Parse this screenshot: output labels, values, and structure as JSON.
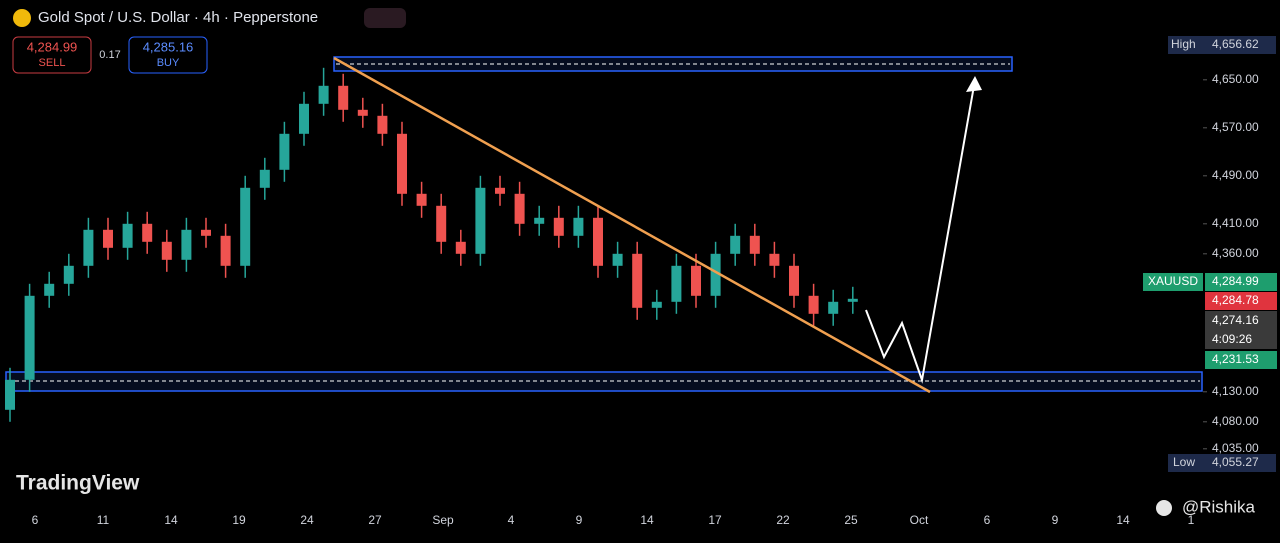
{
  "header": {
    "title": "Gold Spot / U.S. Dollar · 4h · Pepperstone",
    "sell_price": "4,284.99",
    "sell_label": "SELL",
    "spread": "0.17",
    "buy_price": "4,285.16",
    "buy_label": "BUY"
  },
  "price_labels": {
    "high_label": "High",
    "high_value": "4,656.62",
    "symbol": "XAUUSD",
    "last": "4,284.99",
    "bid": "4,284.78",
    "prev": "4,274.16",
    "countdown": "4:09:26",
    "level": "4,231.53",
    "low_label": "Low",
    "low_value": "4,055.27"
  },
  "watermark": "TradingView",
  "credit": "@Rishika",
  "chart_data": {
    "type": "candlestick",
    "categories": [
      "6",
      "11",
      "14",
      "19",
      "24",
      "27",
      "Sep",
      "4",
      "9",
      "14",
      "17",
      "22",
      "25",
      "Oct",
      "6",
      "9",
      "14",
      "1"
    ],
    "up_color": "#26a69a",
    "down_color": "#ef5350",
    "ylim": [
      3933,
      4783
    ],
    "yticks": [
      {
        "value": 4035,
        "label": "4,035.00"
      },
      {
        "value": 4080,
        "label": "4,080.00"
      },
      {
        "value": 4130,
        "label": "4,130.00"
      },
      {
        "value": 4360,
        "label": "4,360.00"
      },
      {
        "value": 4410,
        "label": "4,410.00"
      },
      {
        "value": 4490,
        "label": "4,490.00"
      },
      {
        "value": 4570,
        "label": "4,570.00"
      },
      {
        "value": 4650,
        "label": "4,650.00"
      }
    ],
    "open": [
      4100,
      4150,
      4290,
      4310,
      4340,
      4400,
      4370,
      4410,
      4380,
      4350,
      4400,
      4390,
      4340,
      4470,
      4500,
      4560,
      4610,
      4640,
      4600,
      4590,
      4560,
      4460,
      4440,
      4380,
      4360,
      4470,
      4460,
      4410,
      4420,
      4390,
      4420,
      4340,
      4360,
      4270,
      4280,
      4340,
      4290,
      4360,
      4390,
      4360,
      4340,
      4290,
      4260,
      4280
    ],
    "high": [
      4170,
      4310,
      4330,
      4360,
      4420,
      4420,
      4430,
      4430,
      4400,
      4420,
      4420,
      4410,
      4490,
      4520,
      4580,
      4630,
      4670,
      4660,
      4620,
      4610,
      4580,
      4480,
      4460,
      4400,
      4490,
      4490,
      4480,
      4440,
      4440,
      4440,
      4440,
      4380,
      4380,
      4300,
      4360,
      4360,
      4380,
      4410,
      4410,
      4380,
      4360,
      4310,
      4300,
      4305
    ],
    "low": [
      4080,
      4130,
      4270,
      4290,
      4320,
      4350,
      4350,
      4360,
      4330,
      4330,
      4370,
      4320,
      4320,
      4450,
      4480,
      4540,
      4590,
      4580,
      4570,
      4540,
      4440,
      4420,
      4360,
      4340,
      4340,
      4440,
      4390,
      4390,
      4370,
      4370,
      4320,
      4320,
      4250,
      4250,
      4260,
      4270,
      4270,
      4340,
      4340,
      4320,
      4270,
      4240,
      4240,
      4260
    ],
    "close": [
      4150,
      4290,
      4310,
      4340,
      4400,
      4370,
      4410,
      4380,
      4350,
      4400,
      4390,
      4340,
      4470,
      4500,
      4560,
      4610,
      4640,
      4600,
      4590,
      4560,
      4460,
      4440,
      4380,
      4360,
      4470,
      4460,
      4410,
      4420,
      4390,
      4420,
      4340,
      4360,
      4270,
      4280,
      4340,
      4290,
      4360,
      4390,
      4360,
      4340,
      4290,
      4260,
      4280,
      4285
    ]
  }
}
